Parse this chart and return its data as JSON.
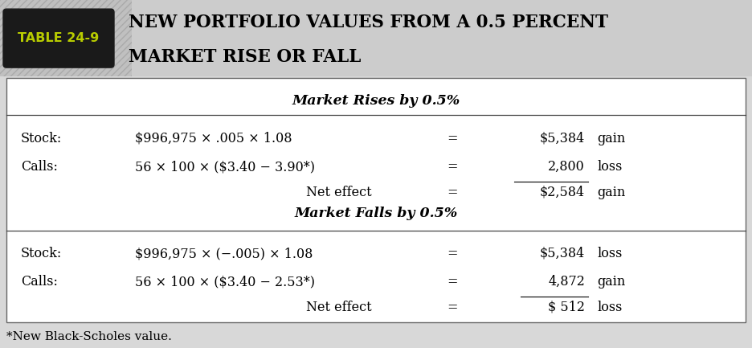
{
  "table_label": "TABLE 24-9",
  "title_line1": "NEW PORTFOLIO VALUES FROM A 0.5 PERCENT",
  "title_line2": "MARKET RISE OR FALL",
  "section1_header": "Market Rises by 0.5%",
  "section2_header": "Market Falls by 0.5%",
  "rows_rise": [
    {
      "label": "Stock:",
      "formula": "$996,975 × .005 × 1.08",
      "eq": "=",
      "value": "$5,384",
      "gl": "gain"
    },
    {
      "label": "Calls:",
      "formula": "56 × 100 × ($3.40 − 3.90*)",
      "eq": "=",
      "value": "2,800",
      "gl": "loss"
    },
    {
      "label": "",
      "formula": "Net effect",
      "eq": "=",
      "value": "$2,584",
      "gl": "gain"
    }
  ],
  "rows_fall": [
    {
      "label": "Stock:",
      "formula": "$996,975 × (−.005) × 1.08",
      "eq": "=",
      "value": "$5,384",
      "gl": "loss"
    },
    {
      "label": "Calls:",
      "formula": "56 × 100 × ($3.40 − 2.53*)",
      "eq": "=",
      "value": "4,872",
      "gl": "gain"
    },
    {
      "label": "",
      "formula": "Net effect",
      "eq": "=",
      "value": "$ 512",
      "gl": "loss"
    }
  ],
  "footnote": "*New Black-Scholes value.",
  "label_bg": "#1a1a1a",
  "label_text_color": "#b8cc00",
  "outer_bg": "#d8d8d8",
  "table_bg": "#ffffff",
  "hatch_bg": "#cccccc",
  "border_color": "#888888"
}
